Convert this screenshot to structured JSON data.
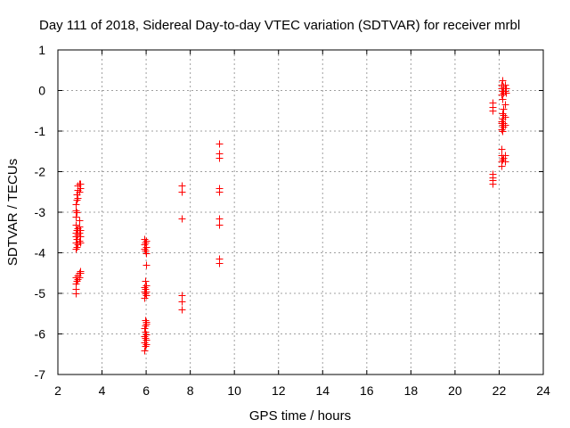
{
  "chart_data": {
    "type": "scatter",
    "title": "Day 111 of 2018, Sidereal Day-to-day VTEC variation (SDTVAR) for receiver mrbl",
    "xlabel": "GPS time / hours",
    "ylabel": "SDTVAR / TECUs",
    "xlim": [
      2,
      24
    ],
    "ylim": [
      -7,
      1
    ],
    "xticks": [
      2,
      4,
      6,
      8,
      10,
      12,
      14,
      16,
      18,
      20,
      22,
      24
    ],
    "yticks": [
      -7,
      -6,
      -5,
      -4,
      -3,
      -2,
      -1,
      0,
      1
    ],
    "grid": true,
    "marker": "plus",
    "colors": {
      "marker": "#ff0000",
      "grid": "#a0a0a0"
    },
    "series": [
      {
        "name": "SDTVAR",
        "points": [
          [
            2.8,
            -5.0
          ],
          [
            2.8,
            -4.9
          ],
          [
            2.8,
            -4.75
          ],
          [
            2.8,
            -4.6
          ],
          [
            2.8,
            -3.9
          ],
          [
            2.8,
            -3.75
          ],
          [
            2.8,
            -3.6
          ],
          [
            2.8,
            -3.5
          ],
          [
            2.8,
            -3.3
          ],
          [
            2.8,
            -3.1
          ],
          [
            2.8,
            -2.95
          ],
          [
            2.8,
            -2.8
          ],
          [
            2.85,
            -4.7
          ],
          [
            2.85,
            -3.85
          ],
          [
            2.85,
            -3.65
          ],
          [
            2.85,
            -3.45
          ],
          [
            2.85,
            -3.0
          ],
          [
            2.85,
            -2.7
          ],
          [
            2.85,
            -2.55
          ],
          [
            2.9,
            -4.65
          ],
          [
            2.9,
            -4.55
          ],
          [
            2.9,
            -3.8
          ],
          [
            2.9,
            -3.55
          ],
          [
            2.9,
            -3.4
          ],
          [
            2.9,
            -2.65
          ],
          [
            2.9,
            -2.45
          ],
          [
            2.9,
            -2.35
          ],
          [
            2.95,
            -4.6
          ],
          [
            2.95,
            -4.5
          ],
          [
            2.95,
            -3.7
          ],
          [
            2.95,
            -3.5
          ],
          [
            2.95,
            -3.35
          ],
          [
            2.95,
            -3.2
          ],
          [
            2.95,
            -2.5
          ],
          [
            2.95,
            -2.3
          ],
          [
            3.0,
            -4.5
          ],
          [
            3.0,
            -4.45
          ],
          [
            3.0,
            -3.75
          ],
          [
            3.0,
            -3.6
          ],
          [
            3.0,
            -3.45
          ],
          [
            3.0,
            -2.4
          ],
          [
            3.0,
            -2.3
          ],
          [
            5.9,
            -6.4
          ],
          [
            5.9,
            -6.2
          ],
          [
            5.9,
            -6.05
          ],
          [
            5.9,
            -5.85
          ],
          [
            5.9,
            -5.1
          ],
          [
            5.9,
            -4.95
          ],
          [
            5.9,
            -4.85
          ],
          [
            5.9,
            -3.9
          ],
          [
            5.9,
            -3.8
          ],
          [
            5.9,
            -3.65
          ],
          [
            5.95,
            -6.3
          ],
          [
            5.95,
            -6.1
          ],
          [
            5.95,
            -5.95
          ],
          [
            5.95,
            -5.8
          ],
          [
            5.95,
            -5.65
          ],
          [
            5.95,
            -5.0
          ],
          [
            5.95,
            -4.9
          ],
          [
            5.95,
            -4.7
          ],
          [
            5.95,
            -3.95
          ],
          [
            5.95,
            -3.75
          ],
          [
            6.0,
            -6.25
          ],
          [
            6.0,
            -6.15
          ],
          [
            6.0,
            -6.0
          ],
          [
            6.0,
            -5.75
          ],
          [
            6.0,
            -5.7
          ],
          [
            6.0,
            -5.05
          ],
          [
            6.0,
            -4.95
          ],
          [
            6.0,
            -4.8
          ],
          [
            6.0,
            -4.3
          ],
          [
            6.0,
            -4.0
          ],
          [
            6.0,
            -3.85
          ],
          [
            6.0,
            -3.7
          ],
          [
            7.6,
            -5.4
          ],
          [
            7.6,
            -5.2
          ],
          [
            7.6,
            -5.05
          ],
          [
            7.6,
            -3.15
          ],
          [
            7.6,
            -2.5
          ],
          [
            7.6,
            -2.35
          ],
          [
            9.3,
            -4.25
          ],
          [
            9.3,
            -4.15
          ],
          [
            9.3,
            -3.3
          ],
          [
            9.3,
            -3.15
          ],
          [
            9.3,
            -2.5
          ],
          [
            9.3,
            -2.4
          ],
          [
            9.3,
            -1.65
          ],
          [
            9.3,
            -1.55
          ],
          [
            9.3,
            -1.3
          ],
          [
            21.7,
            -2.3
          ],
          [
            21.7,
            -2.2
          ],
          [
            21.7,
            -2.15
          ],
          [
            21.7,
            -2.05
          ],
          [
            21.7,
            -0.5
          ],
          [
            21.7,
            -0.4
          ],
          [
            21.7,
            -0.3
          ],
          [
            22.1,
            -1.85
          ],
          [
            22.1,
            -1.75
          ],
          [
            22.1,
            -1.6
          ],
          [
            22.1,
            -1.45
          ],
          [
            22.1,
            -0.95
          ],
          [
            22.1,
            -0.8
          ],
          [
            22.1,
            -0.75
          ],
          [
            22.1,
            -0.1
          ],
          [
            22.1,
            0.05
          ],
          [
            22.1,
            0.15
          ],
          [
            22.15,
            -1.7
          ],
          [
            22.15,
            -1.0
          ],
          [
            22.15,
            -0.85
          ],
          [
            22.15,
            -0.7
          ],
          [
            22.15,
            -0.55
          ],
          [
            22.15,
            -0.2
          ],
          [
            22.15,
            0.0
          ],
          [
            22.15,
            0.25
          ],
          [
            22.2,
            -1.65
          ],
          [
            22.2,
            -0.9
          ],
          [
            22.2,
            -0.8
          ],
          [
            22.2,
            -0.6
          ],
          [
            22.2,
            -0.45
          ],
          [
            22.2,
            -0.05
          ],
          [
            22.2,
            0.1
          ],
          [
            22.25,
            -1.75
          ],
          [
            22.25,
            -1.6
          ],
          [
            22.25,
            -0.85
          ],
          [
            22.25,
            -0.65
          ],
          [
            22.25,
            -0.35
          ],
          [
            22.25,
            0.0
          ],
          [
            22.25,
            0.15
          ],
          [
            22.3,
            -0.05
          ],
          [
            22.3,
            0.05
          ]
        ]
      }
    ]
  }
}
